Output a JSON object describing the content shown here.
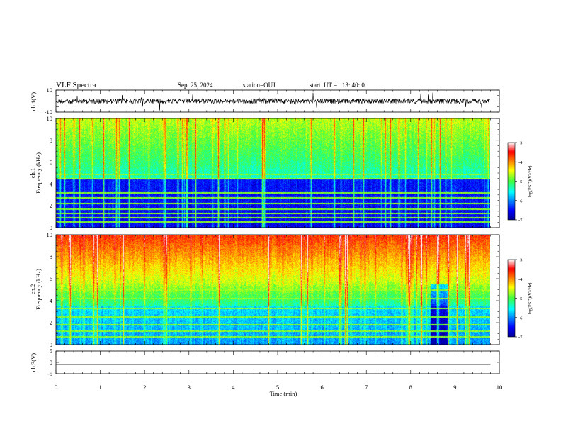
{
  "header": {
    "title": "VLF Spectra",
    "date": "Sep. 25, 2024",
    "station": "station=OUJ",
    "start": "start  UT =   13: 40: 0"
  },
  "chart_data": [
    {
      "type": "line",
      "name": "ch1-waveform",
      "ylabel": "ch.1(V)",
      "ylim": [
        -10,
        10
      ],
      "yticks": [
        "10",
        "-10"
      ],
      "xlim": [
        0,
        10
      ],
      "data_extent_min": 9.8
    },
    {
      "type": "heatmap",
      "name": "ch1-spectrogram",
      "ylabel_top": "ch.1",
      "ylabel": "Frequency  (kHz)",
      "ylim": [
        0,
        10
      ],
      "yticks": [
        "0",
        "2",
        "4",
        "6",
        "8",
        "10"
      ],
      "xlim": [
        0,
        10
      ],
      "colorbar": {
        "label": "log(PSD)(V²/Hz)",
        "range": [
          -7,
          -3
        ],
        "ticks": [
          "-3",
          "-4",
          "-5",
          "-6",
          "-7"
        ]
      }
    },
    {
      "type": "heatmap",
      "name": "ch2-spectrogram",
      "ylabel_top": "ch.2",
      "ylabel": "Frequency  (kHz)",
      "ylim": [
        0,
        10
      ],
      "yticks": [
        "0",
        "2",
        "4",
        "6",
        "8",
        "10"
      ],
      "xlim": [
        0,
        10
      ],
      "colorbar": {
        "label": "log(PSD)(V²/Hz)",
        "range": [
          -7,
          -3
        ],
        "ticks": [
          "-3",
          "-4",
          "-5",
          "-6",
          "-7"
        ]
      }
    },
    {
      "type": "line",
      "name": "ch3-waveform",
      "ylabel": "ch.3(V)",
      "ylim": [
        -5,
        5
      ],
      "yticks": [
        "5",
        "0",
        "-5"
      ],
      "xlim": [
        0,
        10
      ],
      "constant_value": -1,
      "data_extent_min": 9.8
    }
  ],
  "xaxis": {
    "label": "Time  (min)",
    "ticks": [
      "0",
      "1",
      "2",
      "3",
      "4",
      "5",
      "6",
      "7",
      "8",
      "9",
      "10"
    ]
  },
  "colors": {
    "background": "#ffffff",
    "axis": "#000000"
  }
}
